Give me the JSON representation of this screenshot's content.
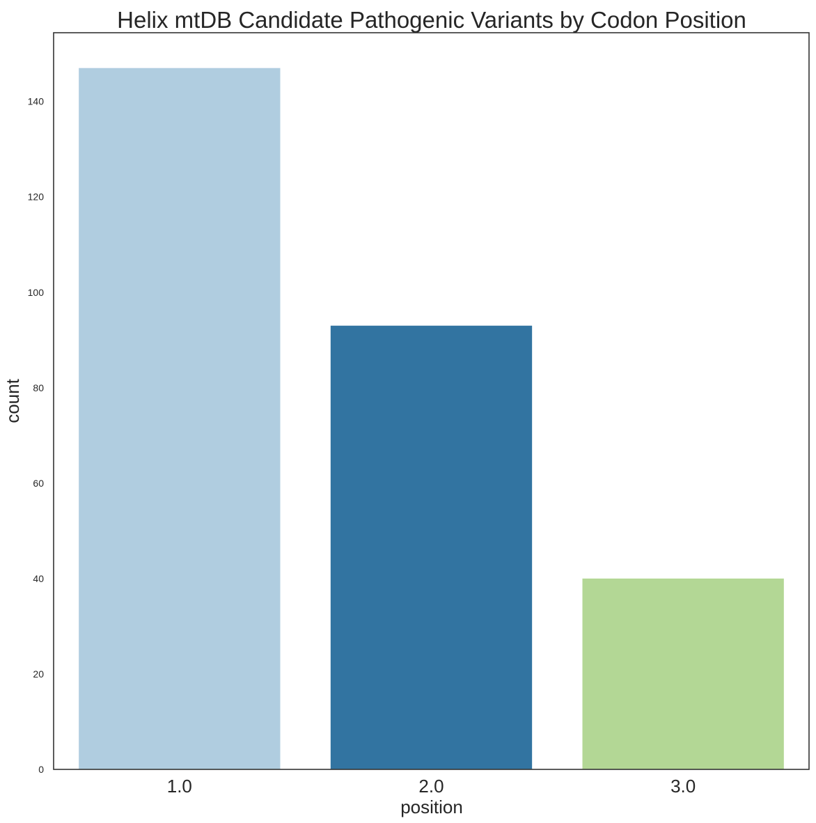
{
  "chart_data": {
    "type": "bar",
    "title": "Helix mtDB Candidate Pathogenic Variants by Codon Position",
    "xlabel": "position",
    "ylabel": "count",
    "categories": [
      "1.0",
      "2.0",
      "3.0"
    ],
    "values": [
      147,
      93,
      40
    ],
    "colors": [
      "#b0cde0",
      "#3274a1",
      "#b3d795"
    ],
    "ylim": [
      0,
      154.4
    ],
    "yticks": [
      0,
      20,
      40,
      60,
      80,
      100,
      120,
      140
    ],
    "grid": false,
    "legend": "none"
  }
}
